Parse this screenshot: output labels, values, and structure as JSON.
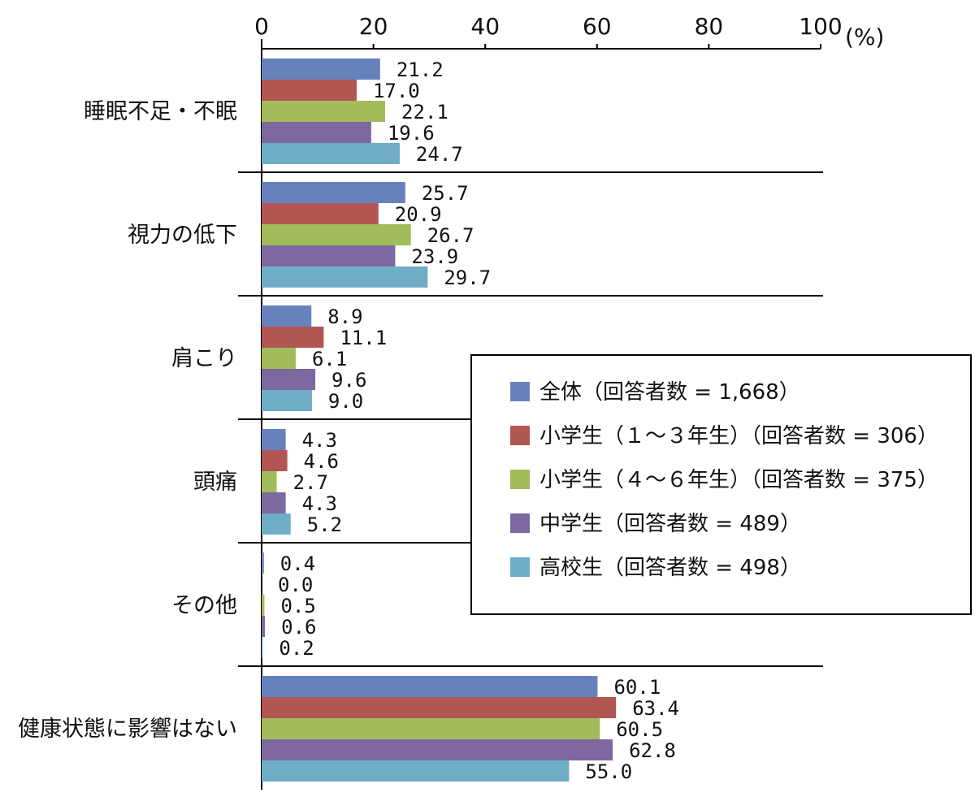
{
  "chart_data": {
    "type": "bar",
    "orientation": "horizontal",
    "unit_label": "(%)",
    "xlim": [
      0,
      100
    ],
    "x_ticks": [
      "0",
      "20",
      "40",
      "60",
      "80",
      "100"
    ],
    "categories": [
      "睡眠不足・不眠",
      "視力の低下",
      "肩こり",
      "頭痛",
      "その他",
      "健康状態に影響はない"
    ],
    "series": [
      {
        "name": "全体（回答者数 = 1,668）",
        "color": "#6682bd",
        "values": [
          21.2,
          25.7,
          8.9,
          4.3,
          0.4,
          60.1
        ]
      },
      {
        "name": "小学生（１～３年生）（回答者数 = 306）",
        "color": "#b15652",
        "values": [
          17.0,
          20.9,
          11.1,
          4.6,
          0.0,
          63.4
        ]
      },
      {
        "name": "小学生（４～６年生）（回答者数 = 375）",
        "color": "#a2bb5b",
        "values": [
          22.1,
          26.7,
          6.1,
          2.7,
          0.5,
          60.5
        ]
      },
      {
        "name": "中学生（回答者数 = 489）",
        "color": "#7d68a0",
        "values": [
          19.6,
          23.9,
          9.6,
          4.3,
          0.6,
          62.8
        ]
      },
      {
        "name": "高校生（回答者数 = 498）",
        "color": "#6fadc6",
        "values": [
          24.7,
          29.7,
          9.0,
          5.2,
          0.2,
          55.0
        ]
      }
    ],
    "grid": false,
    "legend_position": "right-middle"
  }
}
